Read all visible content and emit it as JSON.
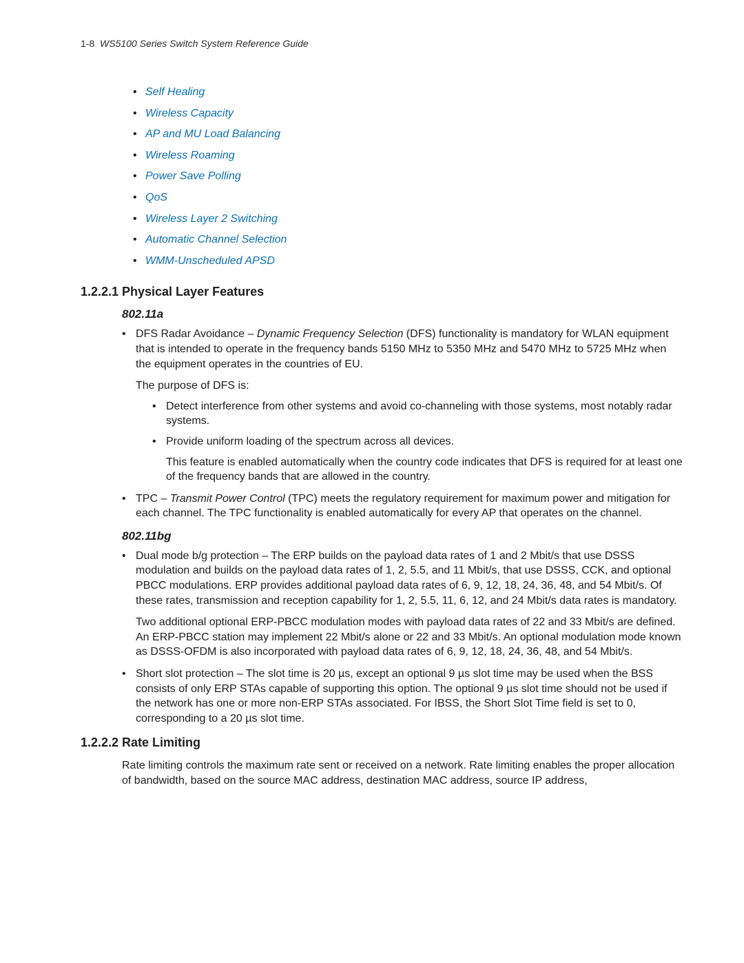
{
  "header": {
    "page_prefix": "1-8",
    "title": "WS5100 Series Switch System Reference Guide"
  },
  "toc_links": [
    "Self Healing",
    "Wireless Capacity",
    "AP and MU Load Balancing",
    "Wireless Roaming",
    "Power Save Polling",
    "QoS",
    "Wireless Layer 2 Switching",
    "Automatic Channel Selection",
    "WMM-Unscheduled APSD"
  ],
  "s1": {
    "num": "1.2.2.1",
    "title": "Physical Layer Features",
    "sub_a": {
      "title": "802.11a",
      "dfs_lead": "DFS Radar Avoidance – ",
      "dfs_term": "Dynamic Frequency Selection",
      "dfs_tail": " (DFS) functionality is mandatory for WLAN equipment that is intended to operate in the frequency bands 5150 MHz to 5350 MHz and 5470 MHz to 5725 MHz when the equipment operates in the countries of EU.",
      "dfs_purpose": "The purpose of DFS is:",
      "dfs_sub1": "Detect interference from other systems and avoid co-channeling with those systems, most notably radar systems.",
      "dfs_sub2": "Provide uniform loading of the spectrum across all devices.",
      "dfs_sub2_note": "This feature is enabled automatically when the country code indicates that DFS is required for at least one of the frequency bands that are allowed in the country.",
      "tpc_lead": "TPC – ",
      "tpc_term": "Transmit Power Control",
      "tpc_tail": " (TPC) meets the regulatory requirement for maximum power and mitigation for each channel. The TPC functionality is enabled automatically for every AP that operates on the channel."
    },
    "sub_bg": {
      "title": "802.11bg",
      "dual_text": "Dual mode b/g protection – The ERP builds on the payload data rates of 1 and 2 Mbit/s that use DSSS modulation and builds on the payload data rates of 1, 2, 5.5, and 11 Mbit/s, that use DSSS, CCK, and optional PBCC modulations. ERP provides additional payload data rates of 6, 9, 12, 18, 24, 36, 48, and 54 Mbit/s. Of these rates, transmission and reception capability for 1, 2, 5.5, 11, 6, 12, and 24 Mbit/s data rates is mandatory.",
      "dual_para2": "Two additional optional ERP-PBCC modulation modes with payload data rates of 22 and 33 Mbit/s are defined. An ERP-PBCC station may implement 22 Mbit/s alone or 22 and 33 Mbit/s. An optional modulation mode known as DSSS-OFDM is also incorporated with payload data rates of 6, 9, 12, 18, 24, 36, 48, and 54 Mbit/s.",
      "short_slot": "Short slot protection – The slot time is 20 µs, except an optional 9 µs slot time may be used when the BSS consists of only ERP STAs capable of supporting this option. The optional 9 µs slot time should not be used if the network has one or more non-ERP STAs associated. For IBSS, the Short Slot Time field is set to 0, corresponding to a 20 µs slot time."
    }
  },
  "s2": {
    "num": "1.2.2.2",
    "title": "Rate Limiting",
    "para": "Rate limiting controls the maximum rate sent or received on a network. Rate limiting enables the proper allocation of bandwidth, based on the source MAC address, destination MAC address, source IP address,"
  },
  "colors": {
    "link": "#0a6fb3",
    "text": "#1e1e1e",
    "background": "#ffffff"
  }
}
